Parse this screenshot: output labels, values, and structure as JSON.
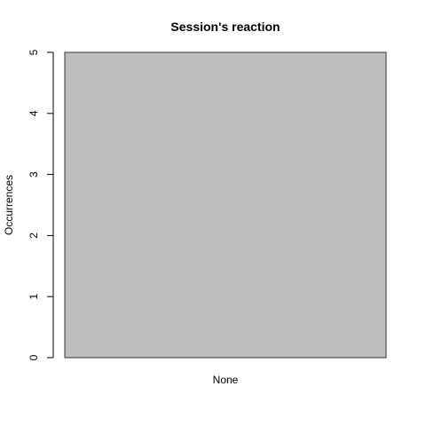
{
  "chart_data": {
    "type": "bar",
    "title": "Session's reaction",
    "xlabel": "",
    "ylabel": "Occurrences",
    "categories": [
      "None"
    ],
    "values": [
      5
    ],
    "ylim": [
      0,
      5
    ],
    "yticks": [
      "0",
      "1",
      "2",
      "3",
      "4",
      "5"
    ],
    "grid": false,
    "legend": "none",
    "colors": {
      "bar_fill": "#bebebe",
      "bar_stroke": "#333333",
      "axis": "#000000",
      "background": "#ffffff"
    }
  }
}
